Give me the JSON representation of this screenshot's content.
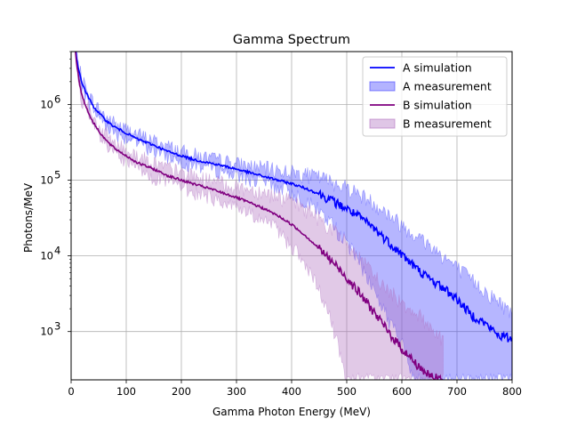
{
  "chart_data": {
    "type": "line",
    "title": "Gamma Spectrum",
    "xlabel": "Gamma Photon Energy (MeV)",
    "ylabel": "Photons/MeV",
    "xlim": [
      0,
      800
    ],
    "ylim": [
      230,
      5000000
    ],
    "yscale": "log",
    "grid": true,
    "legend_position": "top-right",
    "x_ticks": [
      0,
      100,
      200,
      300,
      400,
      500,
      600,
      700,
      800
    ],
    "y_ticks": [
      {
        "value": 1000,
        "base": "10",
        "exp": "3"
      },
      {
        "value": 10000,
        "base": "10",
        "exp": "4"
      },
      {
        "value": 100000,
        "base": "10",
        "exp": "5"
      },
      {
        "value": 1000000,
        "base": "10",
        "exp": "6"
      }
    ],
    "series": [
      {
        "name": "A simulation",
        "kind": "line",
        "color": "#0000ff",
        "x": [
          5,
          10,
          15,
          20,
          30,
          40,
          50,
          60,
          70,
          80,
          100,
          120,
          150,
          175,
          200,
          225,
          250,
          275,
          300,
          325,
          350,
          375,
          400,
          425,
          450,
          475,
          500,
          525,
          550,
          575,
          600,
          625,
          650,
          675,
          700,
          725,
          750,
          775,
          800
        ],
        "y": [
          9000000,
          4000000,
          2600000,
          1900000,
          1300000,
          950000,
          780000,
          650000,
          560000,
          500000,
          420000,
          350000,
          290000,
          240000,
          210000,
          185000,
          170000,
          155000,
          140000,
          125000,
          112000,
          100000,
          90000,
          78000,
          66000,
          53000,
          42000,
          32000,
          23000,
          15500,
          10500,
          7000,
          5000,
          3800,
          2700,
          1700,
          1300,
          900,
          800
        ]
      },
      {
        "name": "A measurement",
        "kind": "band",
        "color": "#4040ff",
        "x": [
          5,
          10,
          20,
          40,
          60,
          80,
          100,
          150,
          200,
          250,
          300,
          350,
          400,
          425,
          450,
          475,
          500,
          525,
          550,
          575,
          600,
          625,
          650,
          675,
          700,
          725,
          750,
          775,
          800
        ],
        "upper": [
          9500000,
          4300000,
          2100000,
          1050000,
          720000,
          560000,
          470000,
          330000,
          240000,
          195000,
          165000,
          145000,
          130000,
          120000,
          110000,
          95000,
          82000,
          65000,
          50000,
          36000,
          26000,
          19000,
          14000,
          10000,
          7000,
          5000,
          3500,
          2500,
          1800
        ],
        "lower": [
          8500000,
          3700000,
          1700000,
          850000,
          580000,
          440000,
          370000,
          250000,
          180000,
          150000,
          120000,
          95000,
          70000,
          55000,
          40000,
          26000,
          15000,
          8000,
          3500,
          1500,
          700,
          230,
          230,
          230,
          230,
          230,
          230,
          230,
          230
        ]
      },
      {
        "name": "B simulation",
        "kind": "line",
        "color": "#800080",
        "x": [
          5,
          10,
          15,
          20,
          30,
          40,
          50,
          60,
          70,
          80,
          100,
          120,
          150,
          175,
          200,
          225,
          250,
          275,
          300,
          325,
          350,
          375,
          400,
          425,
          450,
          475,
          500,
          525,
          550,
          575,
          600,
          625,
          650,
          675
        ],
        "y": [
          8000000,
          3500000,
          1900000,
          1300000,
          820000,
          580000,
          450000,
          360000,
          300000,
          260000,
          210000,
          170000,
          140000,
          115000,
          100000,
          88000,
          78000,
          68000,
          59000,
          50000,
          42000,
          34000,
          26000,
          18500,
          12500,
          8200,
          5200,
          3100,
          1800,
          1000,
          600,
          380,
          260,
          230
        ]
      },
      {
        "name": "B measurement",
        "kind": "band",
        "color": "#b070c0",
        "x": [
          5,
          10,
          20,
          40,
          60,
          80,
          100,
          150,
          200,
          250,
          300,
          350,
          375,
          400,
          425,
          450,
          475,
          500,
          525,
          550,
          575,
          600,
          625,
          650,
          675
        ],
        "upper": [
          8500000,
          3800000,
          1500000,
          650000,
          420000,
          310000,
          250000,
          170000,
          125000,
          100000,
          82000,
          70000,
          62000,
          52000,
          42000,
          32000,
          22000,
          15000,
          9000,
          5500,
          3500,
          2500,
          1800,
          1200,
          800
        ],
        "lower": [
          7500000,
          3200000,
          1100000,
          520000,
          300000,
          220000,
          170000,
          115000,
          82000,
          62000,
          45000,
          30000,
          22000,
          14000,
          7500,
          3500,
          1200,
          230,
          230,
          230,
          230,
          230,
          230,
          230,
          230
        ]
      }
    ]
  }
}
